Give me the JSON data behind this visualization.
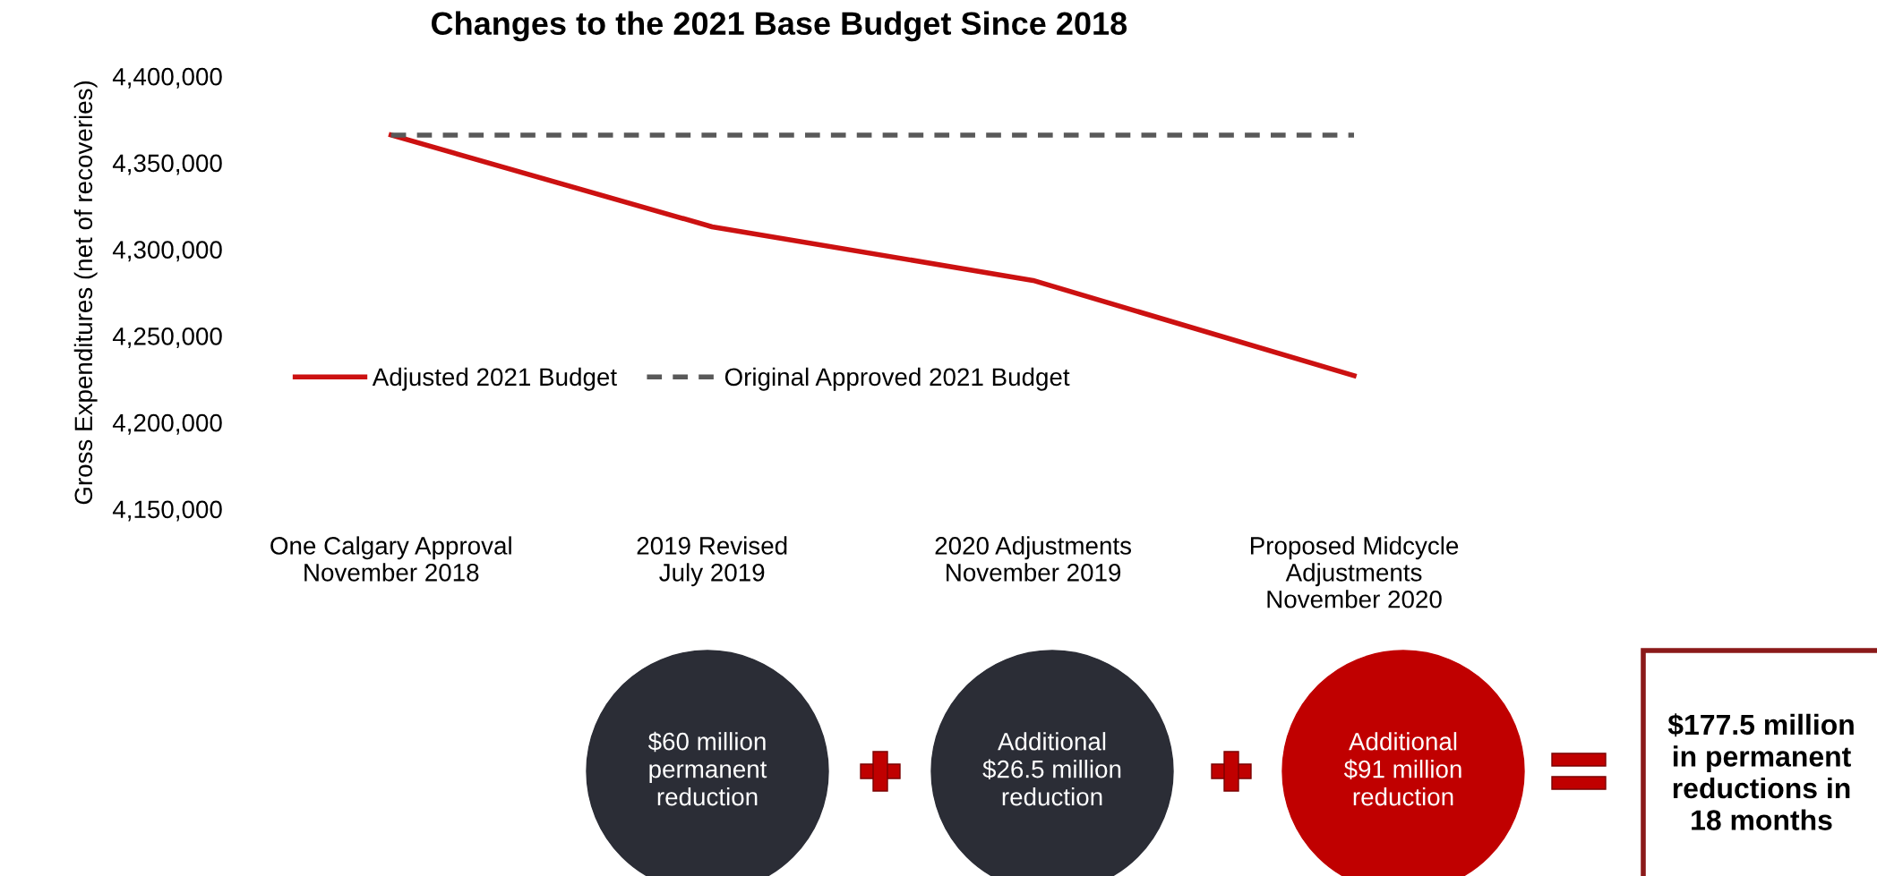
{
  "chart_data": {
    "type": "line",
    "title": "Changes to the 2021 Base Budget Since 2018",
    "ylabel": "Gross Expenditures (net of recoveries)",
    "categories": [
      "One Calgary Approval\nNovember 2018",
      "2019 Revised\nJuly 2019",
      "2020 Adjustments\nNovember 2019",
      "Proposed Midcycle\nAdjustments\nNovember 2020"
    ],
    "series": [
      {
        "name": "Adjusted 2021 Budget",
        "color": "#cc1111",
        "line_style": "solid",
        "values": [
          4366000,
          4313000,
          4282000,
          4227000
        ]
      },
      {
        "name": "Original Approved 2021 Budget",
        "color": "#595959",
        "line_style": "dashed",
        "values": [
          4366000,
          4366000,
          4366000,
          4366000
        ]
      }
    ],
    "ylim": [
      4150000,
      4400000
    ],
    "yticks": [
      {
        "value": 4150000,
        "label": "4,150,000"
      },
      {
        "value": 4200000,
        "label": "4,200,000"
      },
      {
        "value": 4250000,
        "label": "4,250,000"
      },
      {
        "value": 4300000,
        "label": "4,300,000"
      },
      {
        "value": 4350000,
        "label": "4,350,000"
      },
      {
        "value": 4400000,
        "label": "4,400,000"
      }
    ],
    "legend": "center left",
    "marker": "none",
    "annotations": [
      "$60 million\npermanent\nreduction",
      "Additional\n$26.5 million\nreduction",
      "Additional\n$91 million\nreduction",
      "$177.5 million\nin permanent\nreductions in\n18 months"
    ]
  }
}
